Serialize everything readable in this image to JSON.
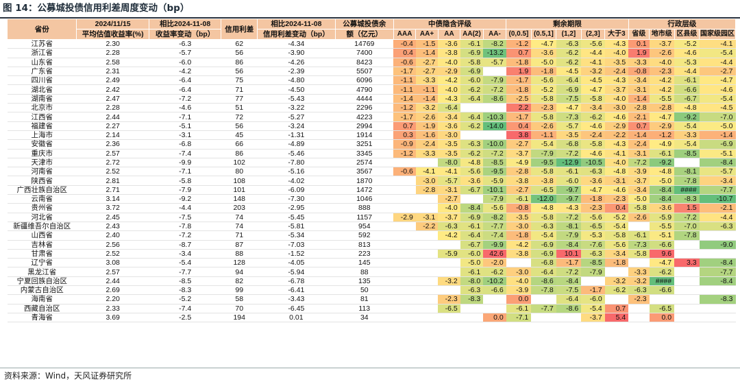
{
  "figure": {
    "title": "图 14：公募城投债信用利差周度变动（bp）",
    "source": "资料来源：Wind，天风证券研究所"
  },
  "table": {
    "headers": {
      "province": "省份",
      "yield_line1": "2024/11/15",
      "yield_line2": "平均估值收益率(%)",
      "yield_chg_line1": "相比2024-11-08",
      "yield_chg_line2": "收益率变动（bp）",
      "spread": "信用利差",
      "spread_chg_line1": "相比2024-11-08",
      "spread_chg_line2": "信用利差变动（bp）",
      "balance_line1": "公募城投债余",
      "balance_line2": "额（亿元）",
      "group_rating": "中债隐含评级",
      "group_maturity": "剩余期限",
      "group_admin": "行政层级",
      "ratings": [
        "AAA",
        "AA+",
        "AA",
        "AA(2)",
        "AA-"
      ],
      "maturities": [
        "(0,0.5]",
        "(0.5,1]",
        "(1,2]",
        "(2,3]",
        "大于3"
      ],
      "admin": [
        "省级",
        "地市级",
        "区县级",
        "国家级园区"
      ]
    },
    "colors": {
      "header_bg": "#f4c6a2",
      "red": "#f8696b",
      "yellow": "#ffeb84",
      "green": "#63be7b"
    },
    "rows": [
      {
        "province": "江苏省",
        "yield": "2.30",
        "yield_chg": "-6.3",
        "spread": "62",
        "spread_chg": "-4.34",
        "balance": "14769",
        "rating": [
          "-0.4",
          "-1.5",
          "-3.6",
          "-6.1",
          "-8.2"
        ],
        "maturity": [
          "-1.2",
          "-4.7",
          "-6.3",
          "-5.6",
          "-4.3"
        ],
        "admin": [
          "0.1",
          "-3.7",
          "-5.2",
          "-4.1"
        ]
      },
      {
        "province": "浙江省",
        "yield": "2.28",
        "yield_chg": "-5.7",
        "spread": "56",
        "spread_chg": "-3.90",
        "balance": "7400",
        "rating": [
          "0.4",
          "-1.4",
          "-3.8",
          "-6.9",
          "-13.2"
        ],
        "maturity": [
          "0.7",
          "-3.6",
          "-6.2",
          "-4.4",
          "-4.0"
        ],
        "admin": [
          "1.9",
          "-2.6",
          "-4.6",
          "-5.4"
        ]
      },
      {
        "province": "山东省",
        "yield": "2.58",
        "yield_chg": "-6.0",
        "spread": "86",
        "spread_chg": "-4.26",
        "balance": "8423",
        "rating": [
          "-0.6",
          "-2.7",
          "-4.0",
          "-5.8",
          "-5.7"
        ],
        "maturity": [
          "-1.8",
          "-5.0",
          "-6.2",
          "-4.1",
          "-3.5"
        ],
        "admin": [
          "-3.3",
          "-4.0",
          "-5.3",
          "-4.4"
        ]
      },
      {
        "province": "广东省",
        "yield": "2.31",
        "yield_chg": "-4.2",
        "spread": "56",
        "spread_chg": "-2.39",
        "balance": "5507",
        "rating": [
          "-1.7",
          "-2.7",
          "-2.9",
          "-6.9",
          ""
        ],
        "maturity": [
          "1.9",
          "-1.8",
          "-4.5",
          "-3.2",
          "-2.4"
        ],
        "admin": [
          "-0.8",
          "-2.3",
          "-4.4",
          "-2.7"
        ]
      },
      {
        "province": "四川省",
        "yield": "2.49",
        "yield_chg": "-6.4",
        "spread": "75",
        "spread_chg": "-4.80",
        "balance": "6096",
        "rating": [
          "-1.1",
          "-3.3",
          "-4.2",
          "-6.0",
          "-7.9"
        ],
        "maturity": [
          "-1.7",
          "-5.6",
          "-6.4",
          "-4.5",
          "-4.3"
        ],
        "admin": [
          "-3.4",
          "-4.2",
          "-6.1",
          "-4.7"
        ]
      },
      {
        "province": "湖北省",
        "yield": "2.42",
        "yield_chg": "-6.4",
        "spread": "71",
        "spread_chg": "-4.50",
        "balance": "4790",
        "rating": [
          "-1.1",
          "-1.1",
          "-4.0",
          "-6.2",
          "-7.2"
        ],
        "maturity": [
          "-1.8",
          "-5.2",
          "-6.9",
          "-4.7",
          "-3.7"
        ],
        "admin": [
          "-3.1",
          "-4.2",
          "-6.6",
          "-4.6"
        ]
      },
      {
        "province": "湖南省",
        "yield": "2.47",
        "yield_chg": "-7.2",
        "spread": "77",
        "spread_chg": "-5.43",
        "balance": "4444",
        "rating": [
          "-1.4",
          "-1.4",
          "-4.3",
          "-6.4",
          "-8.6"
        ],
        "maturity": [
          "-2.5",
          "-5.8",
          "-7.5",
          "-5.8",
          "-4.0"
        ],
        "admin": [
          "-1.4",
          "-5.5",
          "-6.7",
          "-5.4"
        ]
      },
      {
        "province": "北京市",
        "yield": "2.28",
        "yield_chg": "-4.6",
        "spread": "51",
        "spread_chg": "-3.22",
        "balance": "2296",
        "rating": [
          "-1.2",
          "-3.2",
          "-6.4",
          "",
          ""
        ],
        "maturity": [
          "2.2",
          "-2.3",
          "-4.7",
          "-3.4",
          "-3.0"
        ],
        "admin": [
          "-2.8",
          "-2.8",
          "-4.8",
          "-4.5"
        ]
      },
      {
        "province": "江西省",
        "yield": "2.44",
        "yield_chg": "-7.1",
        "spread": "72",
        "spread_chg": "-5.27",
        "balance": "4223",
        "rating": [
          "-1.7",
          "-2.6",
          "-3.4",
          "-6.4",
          "-10.3"
        ],
        "maturity": [
          "-1.7",
          "-5.8",
          "-7.3",
          "-6.2",
          "-4.6"
        ],
        "admin": [
          "-2.1",
          "-4.7",
          "-9.2",
          "-7.0"
        ]
      },
      {
        "province": "福建省",
        "yield": "2.27",
        "yield_chg": "-5.1",
        "spread": "56",
        "spread_chg": "-3.24",
        "balance": "2994",
        "rating": [
          "0.7",
          "-1.9",
          "-3.6",
          "-6.2",
          "-14.0"
        ],
        "maturity": [
          "0.4",
          "-2.6",
          "-5.7",
          "-4.6",
          "-2.9"
        ],
        "admin": [
          "0.7",
          "-2.9",
          "-5.4",
          "-5.0"
        ]
      },
      {
        "province": "上海市",
        "yield": "2.14",
        "yield_chg": "-3.1",
        "spread": "45",
        "spread_chg": "-1.31",
        "balance": "1914",
        "rating": [
          "0.3",
          "-1.6",
          "-3.0",
          "",
          ""
        ],
        "maturity": [
          "3.8",
          "-1.1",
          "-3.5",
          "-2.4",
          "-2.2"
        ],
        "admin": [
          "-1.4",
          "-1.2",
          "-3.3",
          "-1.4"
        ]
      },
      {
        "province": "安徽省",
        "yield": "2.36",
        "yield_chg": "-6.8",
        "spread": "66",
        "spread_chg": "-4.89",
        "balance": "3251",
        "rating": [
          "-0.9",
          "-2.4",
          "-3.5",
          "-6.3",
          "-10.0"
        ],
        "maturity": [
          "-2.7",
          "-5.4",
          "-6.8",
          "-5.8",
          "-4.3"
        ],
        "admin": [
          "-2.4",
          "-4.9",
          "-5.4",
          "-6.9"
        ]
      },
      {
        "province": "重庆市",
        "yield": "2.57",
        "yield_chg": "-7.4",
        "spread": "86",
        "spread_chg": "-5.46",
        "balance": "3345",
        "rating": [
          "-1.2",
          "-3.3",
          "-3.5",
          "-6.2",
          "-7.2"
        ],
        "maturity": [
          "-3.7",
          "-7.9",
          "-7.2",
          "-4.6",
          "-4.1"
        ],
        "admin": [
          "-3.1",
          "-6.1",
          "-8.5",
          "-5.1"
        ]
      },
      {
        "province": "天津市",
        "yield": "2.72",
        "yield_chg": "-9.9",
        "spread": "102",
        "spread_chg": "-7.80",
        "balance": "2574",
        "rating": [
          "",
          "",
          "-8.0",
          "-4.8",
          "-8.5"
        ],
        "maturity": [
          "-4.9",
          "-9.5",
          "-12.9",
          "-10.5",
          "-4.0"
        ],
        "admin": [
          "-7.2",
          "-9.2",
          "",
          "-8.4"
        ]
      },
      {
        "province": "河南省",
        "yield": "2.52",
        "yield_chg": "-7.1",
        "spread": "80",
        "spread_chg": "-5.16",
        "balance": "3567",
        "rating": [
          "-0.6",
          "-4.1",
          "-4.1",
          "-5.6",
          "-9.5"
        ],
        "maturity": [
          "-2.8",
          "-5.8",
          "-6.1",
          "-6.3",
          "-4.8"
        ],
        "admin": [
          "-3.9",
          "-4.8",
          "-8.1",
          "-5.7"
        ]
      },
      {
        "province": "陕西省",
        "yield": "2.81",
        "yield_chg": "-5.8",
        "spread": "108",
        "spread_chg": "-4.02",
        "balance": "1870",
        "rating": [
          "",
          "-3.0",
          "-5.7",
          "-3.6",
          "-5.9"
        ],
        "maturity": [
          "-3.8",
          "-3.8",
          "-6.0",
          "-3.6",
          "-3.1"
        ],
        "admin": [
          "-3.7",
          "-5.0",
          "-7.8",
          "-3.4"
        ]
      },
      {
        "province": "广西壮族自治区",
        "yield": "2.71",
        "yield_chg": "-7.9",
        "spread": "101",
        "spread_chg": "-6.09",
        "balance": "1472",
        "rating": [
          "",
          "-2.8",
          "-3.1",
          "-6.7",
          "-10.1"
        ],
        "maturity": [
          "-2.7",
          "-6.5",
          "-9.7",
          "-4.7",
          "-4.6"
        ],
        "admin": [
          "-3.4",
          "-8.4",
          "####",
          "-7.7"
        ]
      },
      {
        "province": "云南省",
        "yield": "3.14",
        "yield_chg": "-9.2",
        "spread": "148",
        "spread_chg": "-7.30",
        "balance": "1046",
        "rating": [
          "",
          "",
          "-2.7",
          "",
          "-7.9"
        ],
        "maturity": [
          "-6.1",
          "-12.0",
          "-9.7",
          "-1.8",
          "-2.3"
        ],
        "admin": [
          "-5.0",
          "-8.4",
          "-8.3",
          "-10.7"
        ]
      },
      {
        "province": "贵州省",
        "yield": "3.72",
        "yield_chg": "-4.4",
        "spread": "203",
        "spread_chg": "-2.95",
        "balance": "888",
        "rating": [
          "",
          "",
          "-4.0",
          "-8.4",
          "-5.6"
        ],
        "maturity": [
          "-0.8",
          "-4.8",
          "-4.3",
          "-2.3",
          "0.4"
        ],
        "admin": [
          "-5.8",
          "-3.6",
          "1.5",
          "-2.1"
        ]
      },
      {
        "province": "河北省",
        "yield": "2.45",
        "yield_chg": "-7.5",
        "spread": "74",
        "spread_chg": "-5.45",
        "balance": "1157",
        "rating": [
          "-2.9",
          "-3.1",
          "-3.7",
          "-6.9",
          "-8.2"
        ],
        "maturity": [
          "-3.5",
          "-5.8",
          "-7.2",
          "-5.6",
          "-5.2"
        ],
        "admin": [
          "-2.6",
          "-5.9",
          "-7.2",
          "-4.4"
        ]
      },
      {
        "province": "新疆维吾尔自治区",
        "yield": "2.43",
        "yield_chg": "-7.8",
        "spread": "74",
        "spread_chg": "-5.81",
        "balance": "954",
        "rating": [
          "",
          "-2.2",
          "-6.3",
          "-6.1",
          "-7.7"
        ],
        "maturity": [
          "-3.0",
          "-6.3",
          "-8.1",
          "-6.5",
          "-5.4"
        ],
        "admin": [
          "",
          "-5.5",
          "-7.0",
          "-6.3"
        ]
      },
      {
        "province": "山西省",
        "yield": "2.40",
        "yield_chg": "-7.2",
        "spread": "71",
        "spread_chg": "-5.34",
        "balance": "592",
        "rating": [
          "",
          "",
          "-4.2",
          "-6.4",
          "-7.4"
        ],
        "maturity": [
          "-1.8",
          "-5.4",
          "-7.9",
          "-5.3",
          "-5.8"
        ],
        "admin": [
          "-6.1",
          "-5.1",
          "-7.8",
          ""
        ]
      },
      {
        "province": "吉林省",
        "yield": "2.56",
        "yield_chg": "-8.7",
        "spread": "87",
        "spread_chg": "-7.03",
        "balance": "813",
        "rating": [
          "",
          "",
          "",
          "-6.7",
          "-9.9"
        ],
        "maturity": [
          "-4.2",
          "-6.9",
          "-8.4",
          "-7.6",
          "-5.6"
        ],
        "admin": [
          "-7.3",
          "-6.6",
          "",
          "-9.0"
        ]
      },
      {
        "province": "甘肃省",
        "yield": "2.52",
        "yield_chg": "-3.4",
        "spread": "88",
        "spread_chg": "-1.52",
        "balance": "223",
        "rating": [
          "",
          "",
          "-5.9",
          "-6.0",
          "42.6"
        ],
        "maturity": [
          "-3.8",
          "-6.9",
          "10.1",
          "-6.3",
          "-3.4"
        ],
        "admin": [
          "-5.8",
          "9.6",
          "",
          ""
        ]
      },
      {
        "province": "辽宁省",
        "yield": "3.08",
        "yield_chg": "-5.4",
        "spread": "128",
        "spread_chg": "-4.05",
        "balance": "145",
        "rating": [
          "",
          "",
          "",
          "-5.0",
          "-2.0"
        ],
        "maturity": [
          "",
          "-6.8",
          "-1.7",
          "-8.5",
          "-1.8"
        ],
        "admin": [
          "",
          "-4.7",
          "3.3",
          "-8.4"
        ]
      },
      {
        "province": "黑龙江省",
        "yield": "2.57",
        "yield_chg": "-7.7",
        "spread": "94",
        "spread_chg": "-5.94",
        "balance": "88",
        "rating": [
          "",
          "",
          "",
          "-6.1",
          "-6.2"
        ],
        "maturity": [
          "-3.0",
          "-6.4",
          "-7.2",
          "-7.9",
          ""
        ],
        "admin": [
          "-3.3",
          "-6.2",
          "",
          "-7.7"
        ]
      },
      {
        "province": "宁夏回族自治区",
        "yield": "2.44",
        "yield_chg": "-8.5",
        "spread": "82",
        "spread_chg": "-6.78",
        "balance": "135",
        "rating": [
          "",
          "",
          "-3.2",
          "-8.0",
          "-10.2"
        ],
        "maturity": [
          "-4.0",
          "-8.6",
          "-8.4",
          "",
          "-3.2"
        ],
        "admin": [
          "-3.2",
          "####",
          "",
          "-8.4"
        ]
      },
      {
        "province": "内蒙古自治区",
        "yield": "2.69",
        "yield_chg": "-8.3",
        "spread": "99",
        "spread_chg": "-6.41",
        "balance": "50",
        "rating": [
          "",
          "",
          "",
          "-6.3",
          "-6.6"
        ],
        "maturity": [
          "-3.9",
          "-7.8",
          "-7.5",
          "-1.7",
          "-6.2"
        ],
        "admin": [
          "-6.3",
          "-6.6",
          "",
          ""
        ]
      },
      {
        "province": "海南省",
        "yield": "2.20",
        "yield_chg": "-5.2",
        "spread": "58",
        "spread_chg": "-3.43",
        "balance": "81",
        "rating": [
          "",
          "",
          "-2.3",
          "-8.3",
          ""
        ],
        "maturity": [
          "0.0",
          "",
          "-6.4",
          "-6.0",
          ""
        ],
        "admin": [
          "-2.3",
          "",
          "",
          "-8.3"
        ]
      },
      {
        "province": "西藏自治区",
        "yield": "2.33",
        "yield_chg": "-7.4",
        "spread": "70",
        "spread_chg": "-6.45",
        "balance": "113",
        "rating": [
          "",
          "",
          "-6.5",
          "",
          ""
        ],
        "maturity": [
          "-6.1",
          "-7.7",
          "-8.6",
          "-5.4",
          "0.7"
        ],
        "admin": [
          "",
          "-6.5",
          "",
          ""
        ]
      },
      {
        "province": "青海省",
        "yield": "3.69",
        "yield_chg": "-2.5",
        "spread": "194",
        "spread_chg": "0.01",
        "balance": "34",
        "rating": [
          "",
          "",
          "",
          "",
          "0.0"
        ],
        "maturity": [
          "-7.1",
          "",
          "",
          "-3.7",
          "5.4"
        ],
        "admin": [
          "",
          "0.0",
          "",
          ""
        ]
      }
    ]
  }
}
